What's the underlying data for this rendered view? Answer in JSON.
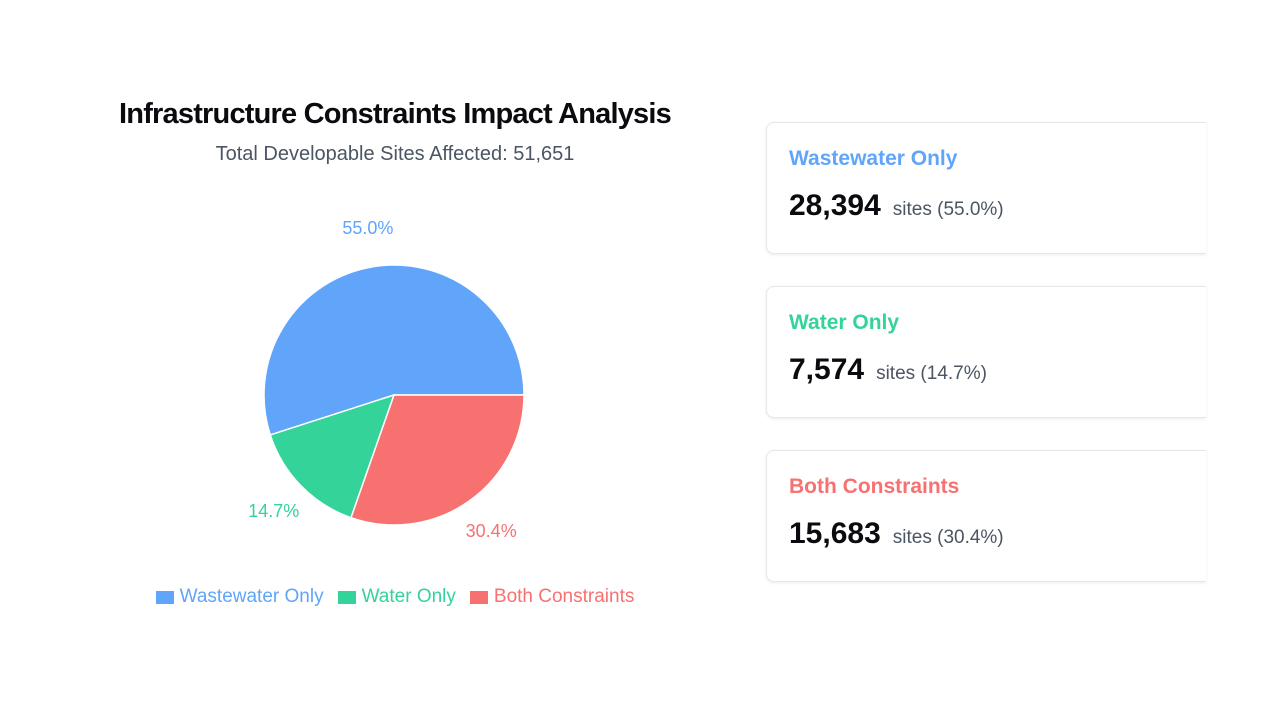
{
  "chart_data": {
    "type": "pie",
    "title": "Infrastructure Constraints Impact Analysis",
    "subtitle": "Total Developable Sites Affected: 51,651",
    "categories": [
      "Wastewater Only",
      "Water Only",
      "Both Constraints"
    ],
    "values": [
      28394,
      7574,
      15683
    ],
    "percent_labels": [
      "55.0%",
      "14.7%",
      "30.4%"
    ],
    "colors": [
      "#60a5fa",
      "#34d399",
      "#f87171"
    ],
    "legend_position": "bottom"
  },
  "cards": [
    {
      "title": "Wastewater Only",
      "value": "28,394",
      "unit": "sites (55.0%)",
      "color": "#60a5fa"
    },
    {
      "title": "Water Only",
      "value": "7,574",
      "unit": "sites (14.7%)",
      "color": "#34d399"
    },
    {
      "title": "Both Constraints",
      "value": "15,683",
      "unit": "sites (30.4%)",
      "color": "#f87171"
    }
  ]
}
